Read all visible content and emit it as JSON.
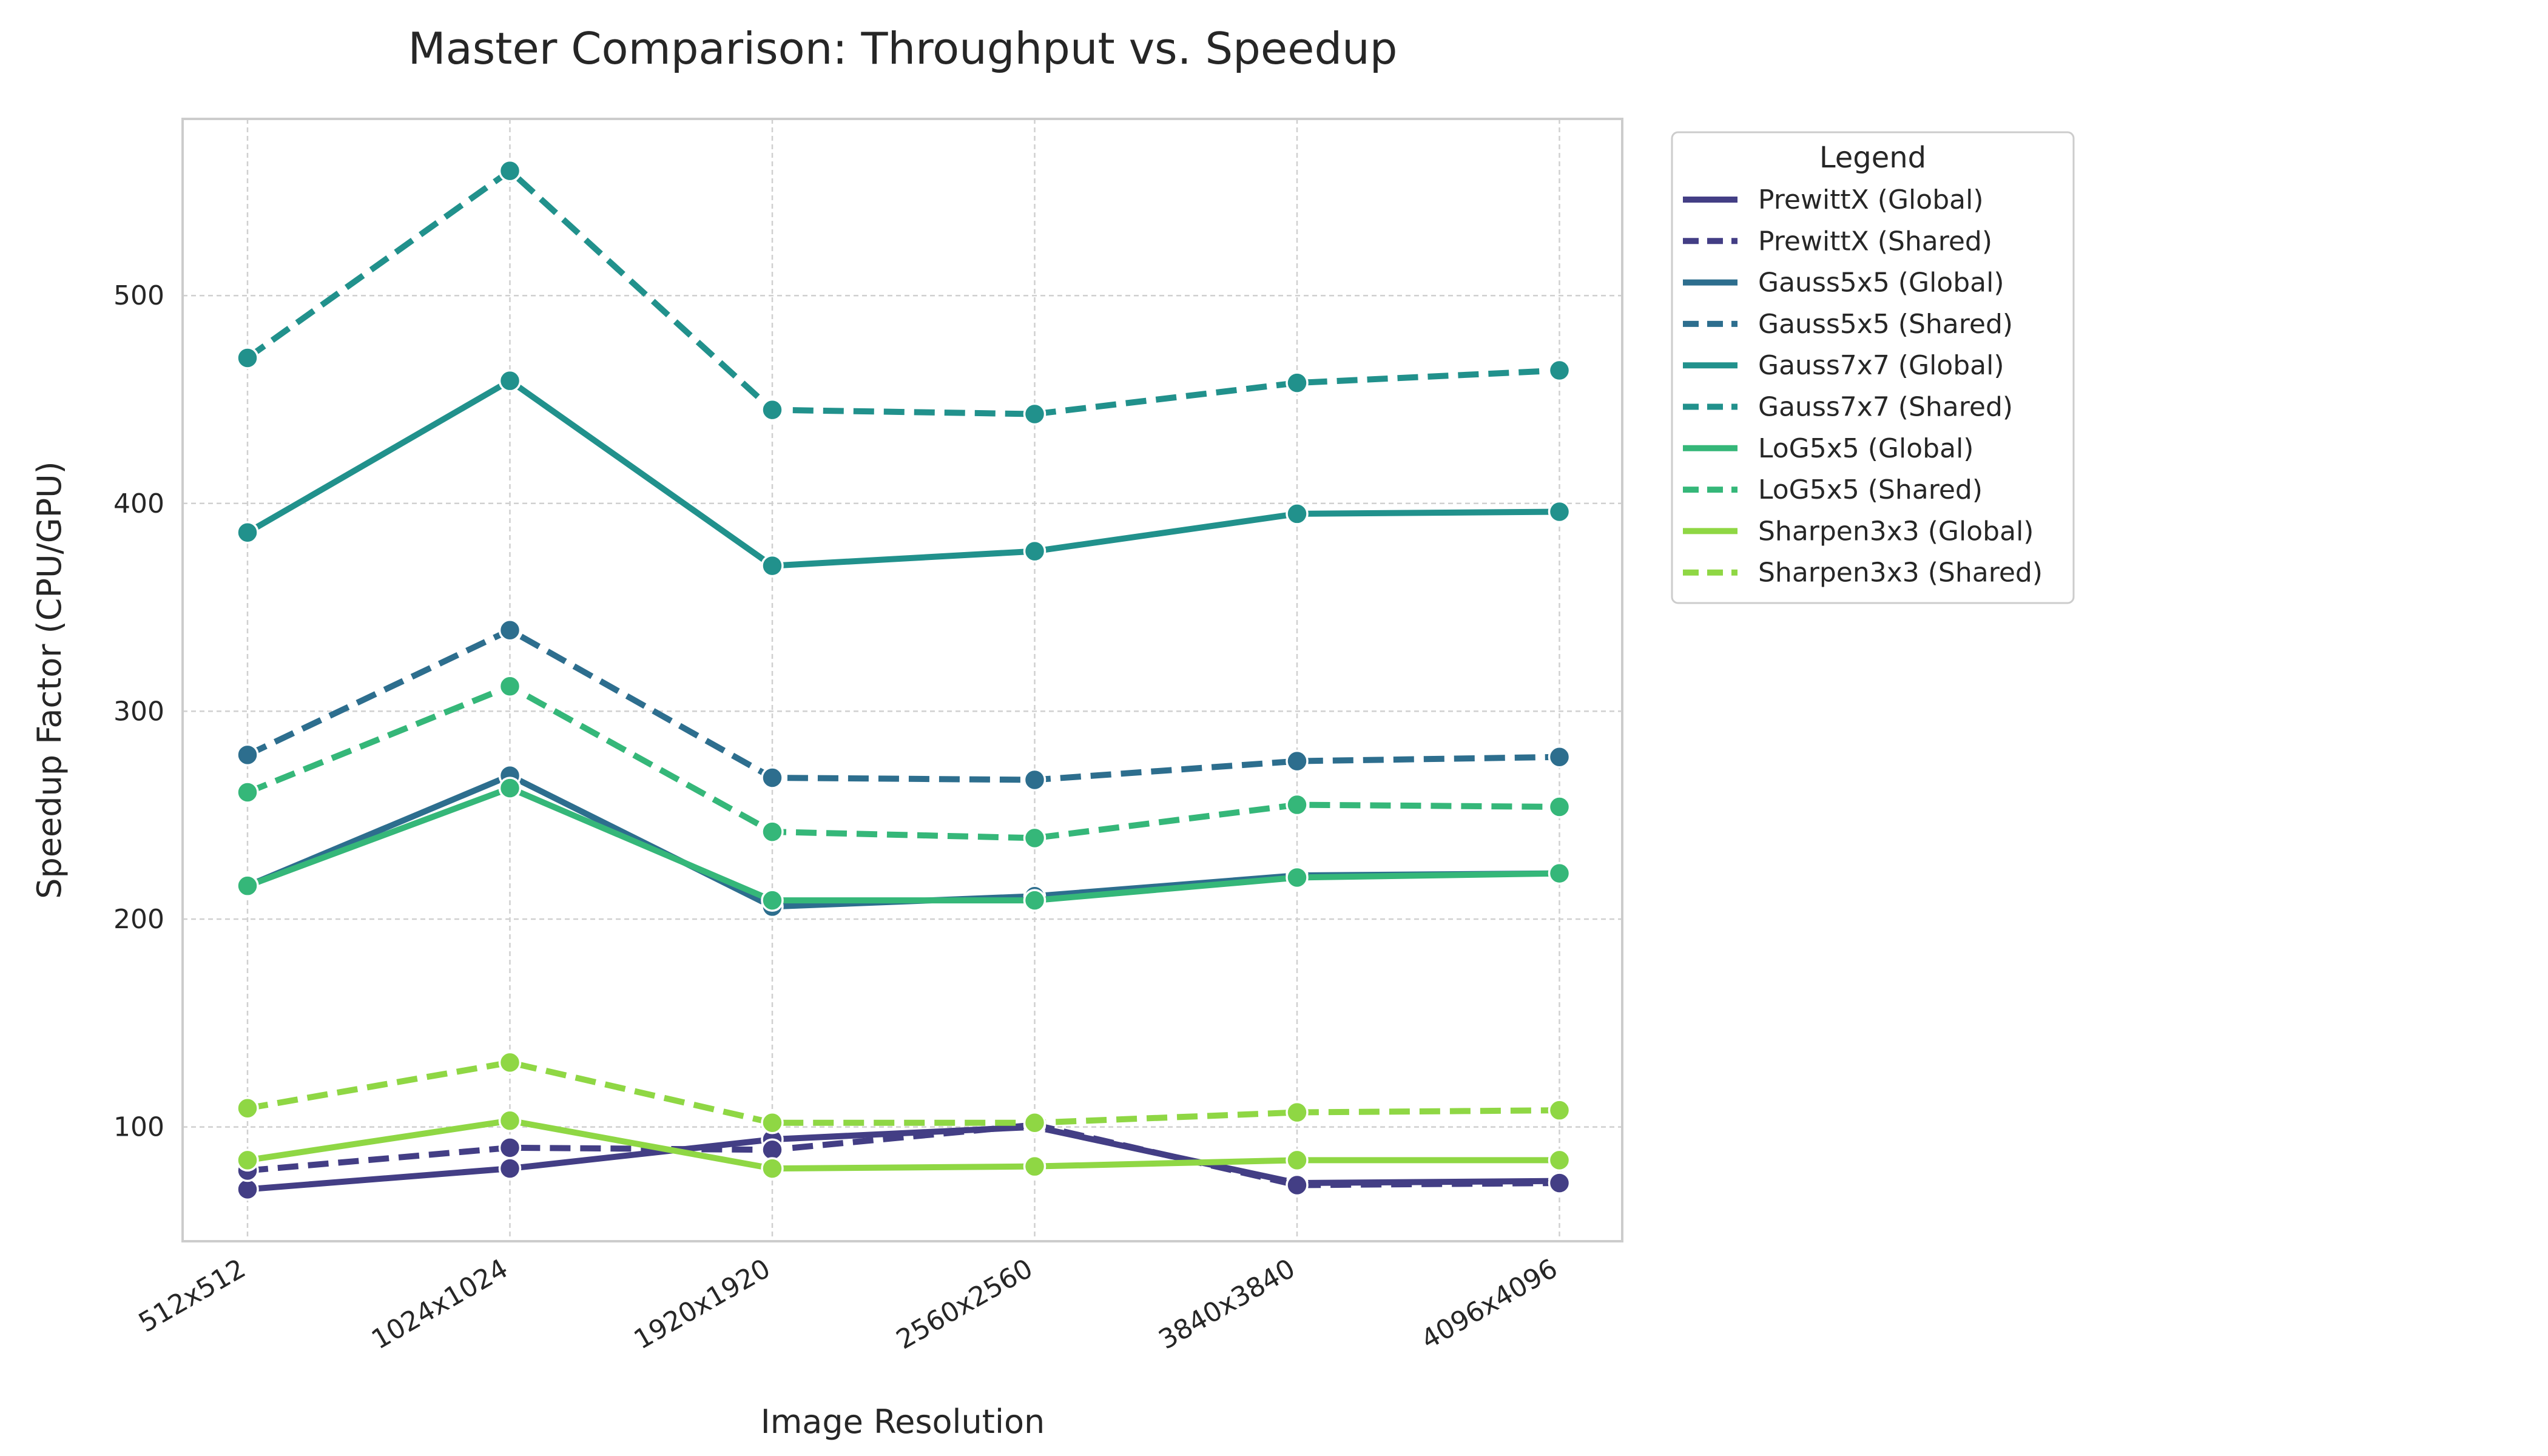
{
  "chart_data": {
    "type": "line",
    "title": "Master Comparison: Throughput vs. Speedup",
    "xlabel": "Image Resolution",
    "ylabel": "Speedup Factor (CPU/GPU)",
    "categories": [
      "512x512",
      "1024x1024",
      "1920x1920",
      "2560x2560",
      "3840x3840",
      "4096x4096"
    ],
    "ylim": [
      45,
      585
    ],
    "yticks": [
      100,
      200,
      300,
      400,
      500
    ],
    "grid": true,
    "legend": {
      "title": "Legend",
      "placement": "outside-top-right"
    },
    "series": [
      {
        "name": "PrewittX (Global)",
        "color": "#433E85",
        "style": "solid",
        "values": [
          70,
          80,
          94,
          100,
          73,
          74
        ]
      },
      {
        "name": "PrewittX (Shared)",
        "color": "#433E85",
        "style": "dashed",
        "values": [
          79,
          90,
          89,
          101,
          72,
          73
        ]
      },
      {
        "name": "Gauss5x5 (Global)",
        "color": "#2D6E8E",
        "style": "solid",
        "values": [
          216,
          269,
          206,
          211,
          221,
          222
        ]
      },
      {
        "name": "Gauss5x5 (Shared)",
        "color": "#2D6E8E",
        "style": "dashed",
        "values": [
          279,
          339,
          268,
          267,
          276,
          278
        ]
      },
      {
        "name": "Gauss7x7 (Global)",
        "color": "#21918C",
        "style": "solid",
        "values": [
          386,
          459,
          370,
          377,
          395,
          396
        ]
      },
      {
        "name": "Gauss7x7 (Shared)",
        "color": "#21918C",
        "style": "dashed",
        "values": [
          470,
          560,
          445,
          443,
          458,
          464
        ]
      },
      {
        "name": "LoG5x5 (Global)",
        "color": "#35B779",
        "style": "solid",
        "values": [
          216,
          263,
          209,
          209,
          220,
          222
        ]
      },
      {
        "name": "LoG5x5 (Shared)",
        "color": "#35B779",
        "style": "dashed",
        "values": [
          261,
          312,
          242,
          239,
          255,
          254
        ]
      },
      {
        "name": "Sharpen3x3 (Global)",
        "color": "#8FD744",
        "style": "solid",
        "values": [
          84,
          103,
          80,
          81,
          84,
          84
        ]
      },
      {
        "name": "Sharpen3x3 (Shared)",
        "color": "#8FD744",
        "style": "dashed",
        "values": [
          109,
          131,
          102,
          102,
          107,
          108
        ]
      }
    ]
  }
}
